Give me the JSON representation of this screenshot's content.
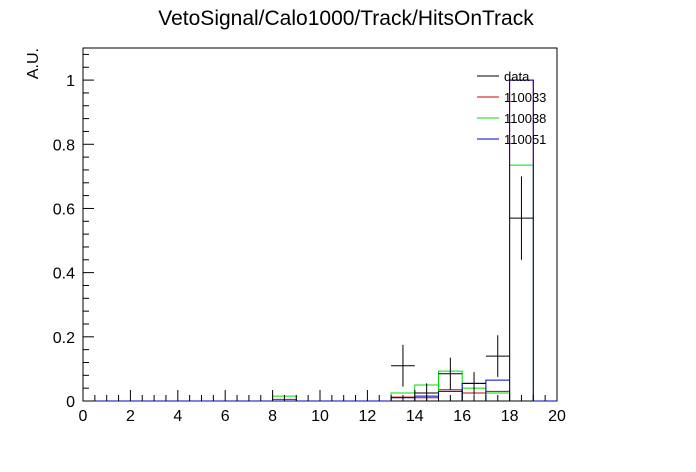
{
  "chart_data": {
    "type": "histogram",
    "title": "VetoSignal/Calo1000/Track/HitsOnTrack",
    "xlabel": "",
    "ylabel": "A.U.",
    "xlim": [
      0,
      20
    ],
    "ylim": [
      0,
      1.1
    ],
    "bin_width": 1,
    "x_ticks": [
      0,
      2,
      4,
      6,
      8,
      10,
      12,
      14,
      16,
      18,
      20
    ],
    "y_ticks": [
      0,
      0.2,
      0.4,
      0.6,
      0.8,
      1
    ],
    "y_tick_labels": [
      "0",
      "0.2",
      "0.4",
      "0.6",
      "0.8",
      "1"
    ],
    "grid": false,
    "legend_position": "top-right",
    "series": [
      {
        "name": "110033",
        "color": "#cc0000",
        "style": "step",
        "x": [
          8,
          13,
          14,
          15,
          16,
          17,
          18
        ],
        "y": [
          0.005,
          0.012,
          0.01,
          0.035,
          0.025,
          0.03,
          1.0
        ]
      },
      {
        "name": "110038",
        "color": "#00dd00",
        "style": "step",
        "x": [
          8,
          13,
          14,
          15,
          16,
          17,
          18
        ],
        "y": [
          0.015,
          0.025,
          0.05,
          0.093,
          0.04,
          0.025,
          0.735
        ]
      },
      {
        "name": "110051",
        "color": "#0000cc",
        "style": "step",
        "x": [
          13,
          14,
          15,
          16,
          17,
          18
        ],
        "y": [
          0.01,
          0.015,
          0.03,
          0.055,
          0.065,
          1.0
        ]
      },
      {
        "name": "data",
        "color": "#000000",
        "style": "errorbar",
        "x": [
          13.5,
          14.5,
          15.5,
          16.5,
          17.5,
          18.5
        ],
        "y": [
          0.11,
          0.025,
          0.085,
          0.055,
          0.14,
          0.57
        ],
        "yerr": [
          0.065,
          0.03,
          0.05,
          0.035,
          0.065,
          0.13
        ]
      }
    ]
  }
}
